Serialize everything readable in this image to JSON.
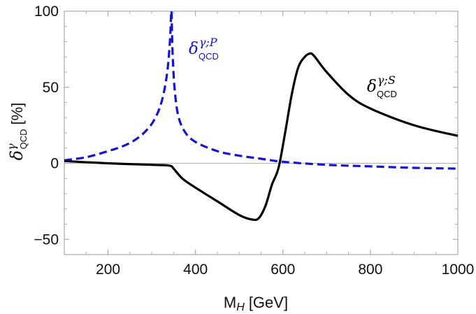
{
  "chart_data": {
    "type": "line",
    "xlabel": {
      "main": "M",
      "sub": "H",
      "unit": "[GeV]"
    },
    "ylabel": {
      "main": "δ",
      "sup": "γ",
      "sub": "QCD",
      "unit": "[%]"
    },
    "xlim": [
      100,
      1000
    ],
    "ylim": [
      -60,
      100
    ],
    "xticks": [
      200,
      400,
      600,
      800,
      1000
    ],
    "yticks": [
      -50,
      0,
      50,
      100
    ],
    "grid": false,
    "zero_line": true,
    "series": [
      {
        "name": {
          "main": "δ",
          "sup": "γ;P",
          "sub": "QCD"
        },
        "color": "#1414d8",
        "dash": true,
        "x": [
          100,
          150,
          200,
          240,
          270,
          295,
          310,
          320,
          328,
          334,
          338,
          341,
          343,
          344,
          345,
          346,
          348,
          352,
          360,
          375,
          400,
          450,
          500,
          550,
          600,
          700,
          800,
          900,
          1000
        ],
        "y": [
          2,
          4,
          8,
          12,
          17,
          24,
          31,
          38,
          47,
          57,
          67,
          78,
          88,
          96,
          100,
          90,
          70,
          50,
          32,
          21,
          14,
          8,
          5,
          3,
          1,
          -1,
          -2,
          -3,
          -3.5
        ]
      },
      {
        "name": {
          "main": "δ",
          "sup": "γ;S",
          "sub": "QCD"
        },
        "color": "#000000",
        "dash": false,
        "x": [
          100,
          200,
          300,
          340,
          350,
          370,
          400,
          450,
          500,
          530,
          545,
          560,
          575,
          590,
          605,
          620,
          635,
          650,
          660,
          670,
          700,
          750,
          800,
          900,
          1000
        ],
        "y": [
          1.5,
          0,
          -1,
          -1.5,
          -3.5,
          -10,
          -16,
          -25,
          -34,
          -37,
          -36,
          -28,
          -14,
          -3,
          20,
          45,
          63,
          70,
          72,
          71,
          60,
          45,
          36,
          25,
          18
        ]
      }
    ]
  }
}
